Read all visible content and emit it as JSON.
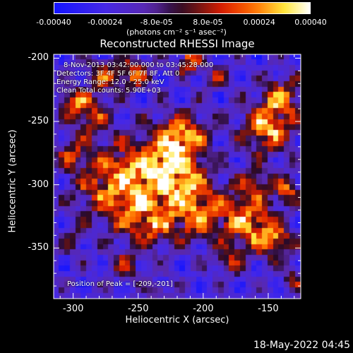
{
  "colorbar": {
    "ticks": [
      "-0.00040",
      "-0.00024",
      "-8.0e-05",
      "8.0e-05",
      "0.00024",
      "0.00040"
    ],
    "units_label": "(photons cm⁻² s⁻¹ asec⁻²)",
    "range": [
      -0.0004,
      0.0004
    ]
  },
  "title": "Reconstructed RHESSI Image",
  "overlay": {
    "time": "8-Nov-2013 03:42:00.000 to 03:45:28.000",
    "detectors": "Detectors: 3F 4F 5F 6F 7F 8F, Att 0",
    "energy": "Energy Range: 12.0 - 25.0 keV",
    "clean": "Clean    Total counts: 5.90E+03",
    "peak": "Position of Peak = [-209,-201]"
  },
  "footer": "18-May-2022 04:45",
  "chart_data": {
    "type": "heatmap",
    "title": "Reconstructed RHESSI Image",
    "xlabel": "Heliocentric X (arcsec)",
    "ylabel": "Heliocentric Y (arcsec)",
    "xlim": [
      -315,
      -125
    ],
    "ylim": [
      -390,
      -197
    ],
    "xticks": [
      {
        "value": -300,
        "label": "-300"
      },
      {
        "value": -250,
        "label": "-250"
      },
      {
        "value": -200,
        "label": "-200"
      },
      {
        "value": -150,
        "label": "-150"
      }
    ],
    "yticks": [
      {
        "value": -200,
        "label": "-200"
      },
      {
        "value": -250,
        "label": "-250"
      },
      {
        "value": -300,
        "label": "-300"
      },
      {
        "value": -350,
        "label": "-350"
      }
    ],
    "colormap": "blue-purple-red-yellow-white",
    "value_range": [
      -0.0004,
      0.0004
    ],
    "peak_position": [
      -209,
      -201
    ]
  }
}
